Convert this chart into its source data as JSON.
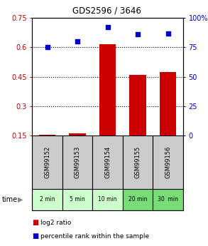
{
  "title": "GDS2596 / 3646",
  "samples": [
    "GSM99152",
    "GSM99153",
    "GSM99154",
    "GSM99155",
    "GSM99156"
  ],
  "time_labels": [
    "2 min",
    "5 min",
    "10 min",
    "20 min",
    "30  min"
  ],
  "log2_ratio": [
    0.155,
    0.162,
    0.615,
    0.46,
    0.475
  ],
  "percentile_rank": [
    75,
    80,
    92,
    86,
    87
  ],
  "bar_color": "#cc0000",
  "dot_color": "#0000cc",
  "left_yticks": [
    0.15,
    0.3,
    0.45,
    0.6,
    0.75
  ],
  "right_yticks": [
    0,
    25,
    50,
    75,
    100
  ],
  "ylim_left": [
    0.15,
    0.75
  ],
  "ylim_right": [
    0,
    100
  ],
  "sample_bg": "#cccccc",
  "time_bg_light": "#ccffcc",
  "time_bg_dark": "#77dd77",
  "legend_log2": "log2 ratio",
  "legend_pct": "percentile rank within the sample"
}
